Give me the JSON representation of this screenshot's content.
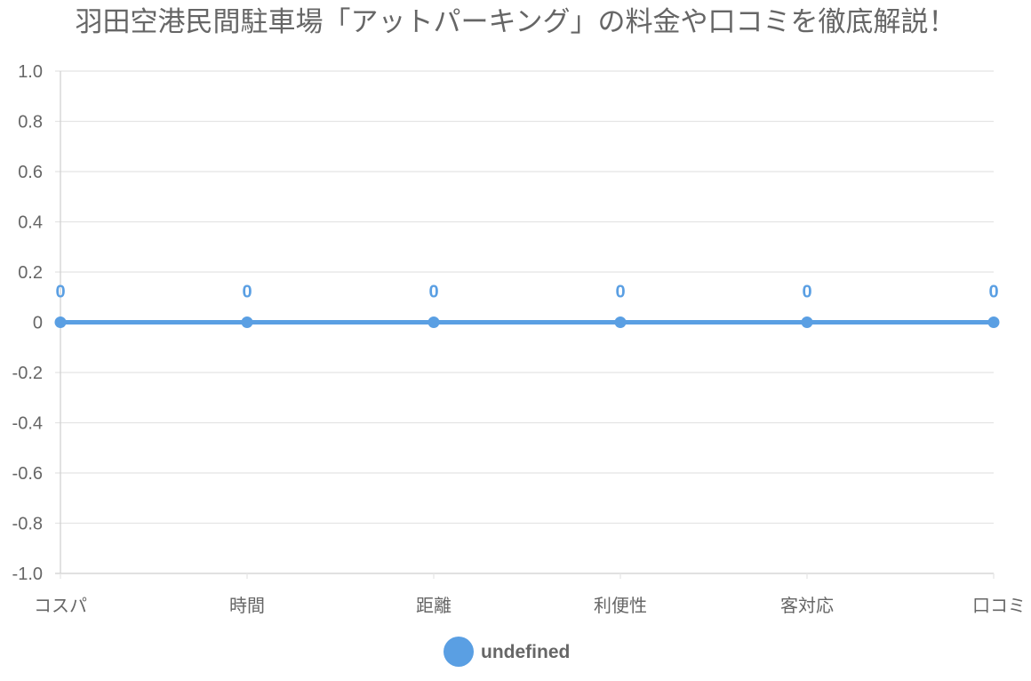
{
  "title": "羽田空港民間駐車場「アットパーキング」の料金や口コミを徹底解説！",
  "colors": {
    "series": "#5a9fe3",
    "grid": "#e4e4e4",
    "axis": "#cfcfcf",
    "text": "#666666"
  },
  "chart_data": {
    "type": "line",
    "title": "羽田空港民間駐車場「アットパーキング」の料金や口コミを徹底解説！",
    "categories": [
      "コスパ",
      "時間",
      "距離",
      "利便性",
      "客対応",
      "口コミ"
    ],
    "series": [
      {
        "name": "undefined",
        "values": [
          0,
          0,
          0,
          0,
          0,
          0
        ],
        "data_labels": [
          "0",
          "0",
          "0",
          "0",
          "0",
          "0"
        ]
      }
    ],
    "ylim": [
      -1.0,
      1.0
    ],
    "yticks": [
      "1.0",
      "0.8",
      "0.6",
      "0.4",
      "0.2",
      "0",
      "-0.2",
      "-0.4",
      "-0.6",
      "-0.8",
      "-1.0"
    ],
    "grid": true,
    "legend": {
      "position": "bottom",
      "labels": [
        "undefined"
      ]
    }
  }
}
